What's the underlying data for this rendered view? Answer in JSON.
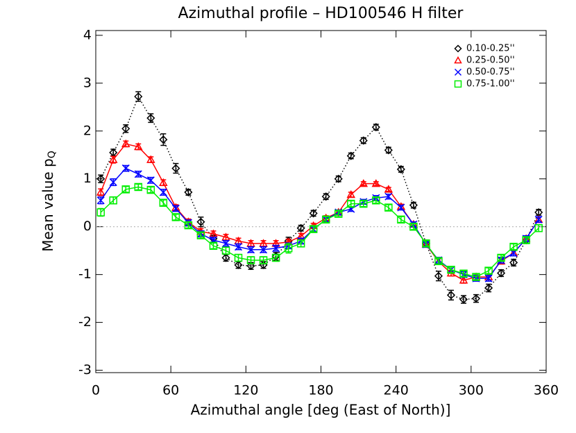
{
  "chart_data": {
    "type": "line",
    "title": "Azimuthal profile – HD100546 H filter",
    "xlabel": "Azimuthal angle [deg (East of North)]",
    "ylabel": "Mean value p",
    "ylabel_sub": "Q",
    "xlim": [
      0,
      360
    ],
    "xticks": [
      0,
      60,
      120,
      180,
      240,
      300,
      360
    ],
    "ylim": [
      -3.05,
      4.1
    ],
    "yticks": [
      -3,
      -2,
      -1,
      0,
      1,
      2,
      3,
      4
    ],
    "reference_line": 0,
    "legend": "top-right",
    "x": [
      4,
      14,
      24,
      34,
      44,
      54,
      64,
      74,
      84,
      94,
      104,
      114,
      124,
      134,
      144,
      154,
      164,
      174,
      184,
      194,
      204,
      214,
      224,
      234,
      244,
      254,
      264,
      274,
      284,
      294,
      304,
      314,
      324,
      334,
      344,
      354
    ],
    "series": [
      {
        "name": "0.10-0.25''",
        "color": "#000000",
        "marker": "diamond",
        "line_style": "dotted",
        "values": [
          1.0,
          1.55,
          2.05,
          2.72,
          2.27,
          1.82,
          1.22,
          0.72,
          0.1,
          -0.25,
          -0.65,
          -0.8,
          -0.82,
          -0.8,
          -0.62,
          -0.3,
          -0.03,
          0.28,
          0.63,
          1.0,
          1.48,
          1.8,
          2.08,
          1.6,
          1.2,
          0.45,
          -0.35,
          -1.03,
          -1.43,
          -1.52,
          -1.5,
          -1.28,
          -0.97,
          -0.75,
          -0.28,
          0.3
        ],
        "errors": [
          0.08,
          0.07,
          0.08,
          0.1,
          0.09,
          0.12,
          0.1,
          0.06,
          0.1,
          0.07,
          0.07,
          0.07,
          0.07,
          0.07,
          0.08,
          0.08,
          0.06,
          0.06,
          0.06,
          0.06,
          0.06,
          0.06,
          0.06,
          0.06,
          0.06,
          0.06,
          0.07,
          0.1,
          0.1,
          0.08,
          0.08,
          0.08,
          0.07,
          0.07,
          0.07,
          0.06
        ]
      },
      {
        "name": "0.25-0.50''",
        "color": "#ff0000",
        "marker": "triangle",
        "line_style": "solid",
        "values": [
          0.72,
          1.4,
          1.73,
          1.67,
          1.4,
          0.92,
          0.4,
          0.1,
          -0.1,
          -0.15,
          -0.22,
          -0.3,
          -0.35,
          -0.35,
          -0.35,
          -0.32,
          -0.2,
          0.02,
          0.18,
          0.3,
          0.67,
          0.9,
          0.9,
          0.78,
          0.42,
          0.05,
          -0.37,
          -0.73,
          -0.97,
          -1.12,
          -1.05,
          -1.05,
          -0.72,
          -0.55,
          -0.25,
          0.15
        ],
        "errors": [
          0.07,
          0.07,
          0.06,
          0.06,
          0.06,
          0.06,
          0.06,
          0.06,
          0.06,
          0.06,
          0.06,
          0.06,
          0.06,
          0.06,
          0.06,
          0.06,
          0.06,
          0.05,
          0.05,
          0.05,
          0.05,
          0.04,
          0.04,
          0.04,
          0.05,
          0.05,
          0.06,
          0.06,
          0.06,
          0.06,
          0.06,
          0.06,
          0.06,
          0.06,
          0.06,
          0.06
        ]
      },
      {
        "name": "0.50-0.75''",
        "color": "#0000ff",
        "marker": "x",
        "line_style": "solid",
        "values": [
          0.55,
          0.93,
          1.22,
          1.1,
          0.97,
          0.72,
          0.38,
          0.08,
          -0.15,
          -0.28,
          -0.35,
          -0.42,
          -0.48,
          -0.48,
          -0.45,
          -0.4,
          -0.3,
          -0.05,
          0.15,
          0.3,
          0.37,
          0.52,
          0.6,
          0.63,
          0.4,
          0.05,
          -0.37,
          -0.7,
          -0.9,
          -1.0,
          -1.08,
          -1.08,
          -0.7,
          -0.55,
          -0.25,
          0.15
        ],
        "errors": [
          0.07,
          0.07,
          0.06,
          0.06,
          0.06,
          0.06,
          0.06,
          0.06,
          0.06,
          0.06,
          0.06,
          0.06,
          0.06,
          0.06,
          0.06,
          0.06,
          0.06,
          0.05,
          0.05,
          0.05,
          0.05,
          0.05,
          0.05,
          0.05,
          0.05,
          0.05,
          0.06,
          0.06,
          0.06,
          0.06,
          0.06,
          0.06,
          0.06,
          0.06,
          0.06,
          0.06
        ]
      },
      {
        "name": "0.75-1.00''",
        "color": "#00ee00",
        "marker": "square",
        "line_style": "solid",
        "values": [
          0.3,
          0.55,
          0.78,
          0.83,
          0.77,
          0.5,
          0.2,
          0.03,
          -0.18,
          -0.4,
          -0.5,
          -0.65,
          -0.7,
          -0.7,
          -0.65,
          -0.45,
          -0.35,
          -0.05,
          0.15,
          0.27,
          0.48,
          0.48,
          0.55,
          0.4,
          0.15,
          0.0,
          -0.35,
          -0.72,
          -0.9,
          -0.98,
          -1.05,
          -0.92,
          -0.65,
          -0.42,
          -0.28,
          -0.03
        ],
        "errors": [
          0.08,
          0.07,
          0.06,
          0.06,
          0.06,
          0.06,
          0.06,
          0.06,
          0.06,
          0.06,
          0.07,
          0.07,
          0.07,
          0.07,
          0.07,
          0.1,
          0.07,
          0.06,
          0.06,
          0.06,
          0.06,
          0.06,
          0.06,
          0.06,
          0.06,
          0.06,
          0.06,
          0.06,
          0.06,
          0.06,
          0.06,
          0.06,
          0.06,
          0.06,
          0.06,
          0.07
        ]
      }
    ]
  }
}
